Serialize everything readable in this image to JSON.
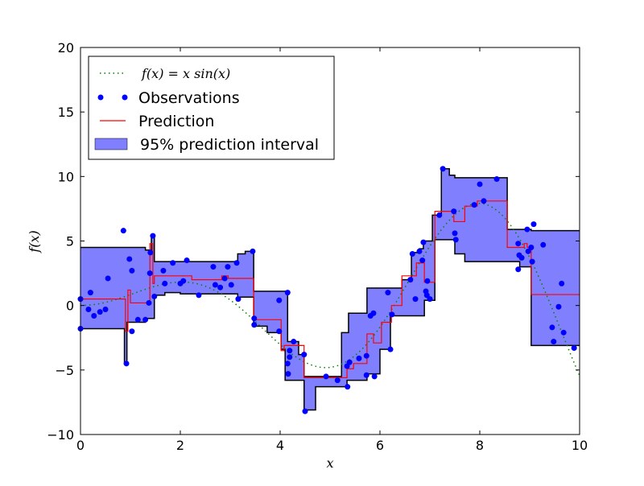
{
  "chart_data": {
    "type": "line",
    "title": "",
    "xlabel": "x",
    "ylabel": "f(x)",
    "xlim": [
      0,
      10
    ],
    "ylim": [
      -10,
      20
    ],
    "xticks": [
      "0",
      "2",
      "4",
      "6",
      "8",
      "10"
    ],
    "yticks": [
      "−10",
      "−5",
      "0",
      "5",
      "10",
      "15",
      "20"
    ],
    "grid": false,
    "legend_position": "top-left",
    "legend": [
      {
        "label": "f(x) = x sin(x)",
        "style": "dotted",
        "color": "#008000"
      },
      {
        "label": "Observations",
        "style": "markers",
        "color": "#0000ff"
      },
      {
        "label": "Prediction",
        "style": "line",
        "color": "#ff0000"
      },
      {
        "label": "95% prediction interval",
        "style": "fill",
        "color": "#8080ff"
      }
    ],
    "function": "x*sin(x)",
    "observations": {
      "x": [
        0,
        0,
        0.2,
        0.16,
        0.27,
        0.39,
        0.5,
        0.55,
        0.86,
        0.92,
        0.98,
        1.03,
        1.03,
        1.15,
        1.3,
        1.37,
        1.39,
        1.4,
        1.45,
        1.48,
        1.66,
        1.69,
        1.85,
        2.0,
        2.06,
        2.13,
        2.37,
        2.66,
        2.7,
        2.8,
        2.89,
        2.95,
        3.02,
        3.13,
        3.16,
        3.45,
        3.48,
        3.48,
        3.98,
        3.98,
        4.15,
        4.15,
        4.16,
        4.19,
        4.19,
        4.27,
        4.48,
        4.5,
        4.92,
        5.15,
        5.34,
        5.35,
        5.39,
        5.58,
        5.73,
        5.73,
        5.81,
        5.89,
        5.87,
        6.21,
        6.24,
        6.16,
        6.61,
        6.65,
        6.71,
        6.79,
        6.85,
        6.87,
        6.92,
        6.94,
        6.95,
        7.0,
        7.19,
        7.26,
        7.48,
        7.5,
        7.52,
        7.89,
        8.0,
        8.08,
        8.34,
        8.77,
        8.77,
        8.79,
        8.84,
        8.95,
        8.97,
        9.03,
        9.05,
        9.08,
        9.27,
        9.45,
        9.48,
        9.58,
        9.64,
        9.68,
        9.89
      ],
      "y": [
        0.5,
        -1.8,
        1.0,
        -0.3,
        -0.8,
        -0.5,
        -0.3,
        2.1,
        5.8,
        -4.5,
        3.6,
        2.7,
        -2.0,
        -1.1,
        -1.1,
        0.2,
        2.5,
        4.1,
        5.4,
        0.7,
        2.7,
        1.7,
        3.3,
        1.7,
        1.9,
        3.5,
        0.8,
        3.0,
        1.6,
        1.4,
        2.1,
        3.0,
        1.6,
        3.3,
        0.5,
        4.2,
        -1.0,
        -1.5,
        0.4,
        -2.0,
        1.0,
        -4.5,
        -5.3,
        -3.5,
        -4.0,
        -2.8,
        -3.8,
        -8.2,
        -5.5,
        -5.8,
        -4.7,
        -6.3,
        -4.4,
        -4.1,
        -3.9,
        -5.4,
        -0.8,
        -5.5,
        -0.6,
        -3.4,
        -0.7,
        1.0,
        2.0,
        4.0,
        0.5,
        4.2,
        3.5,
        4.9,
        1.1,
        0.8,
        1.9,
        0.5,
        7.0,
        10.6,
        7.3,
        5.6,
        5.1,
        7.8,
        9.4,
        8.1,
        9.8,
        4.8,
        2.8,
        3.9,
        3.7,
        5.9,
        4.2,
        4.5,
        3.4,
        6.3,
        4.7,
        -1.7,
        -2.8,
        -0.1,
        1.7,
        -2.1,
        -3.3
      ]
    },
    "prediction_steps": [
      [
        0,
        0.5
      ],
      [
        0.9,
        -2.0
      ],
      [
        0.95,
        1.2
      ],
      [
        1.0,
        0.2
      ],
      [
        1.39,
        4.8
      ],
      [
        1.45,
        1.7
      ],
      [
        1.48,
        2.3
      ],
      [
        2.23,
        2.0
      ],
      [
        2.83,
        2.3
      ],
      [
        2.96,
        2.1
      ],
      [
        3.47,
        -1.1
      ],
      [
        4.02,
        -3.5
      ],
      [
        4.08,
        -3.1
      ],
      [
        4.48,
        -5.6
      ],
      [
        5.34,
        -4.9
      ],
      [
        5.47,
        -4.5
      ],
      [
        5.74,
        -2.2
      ],
      [
        5.87,
        -2.9
      ],
      [
        6.03,
        -1.3
      ],
      [
        6.23,
        0.0
      ],
      [
        6.44,
        2.3
      ],
      [
        6.73,
        3.3
      ],
      [
        6.89,
        1.8
      ],
      [
        7.1,
        7.3
      ],
      [
        7.48,
        6.5
      ],
      [
        7.7,
        7.7
      ],
      [
        7.95,
        8.1
      ],
      [
        8.55,
        4.5
      ],
      [
        8.89,
        4.8
      ],
      [
        8.95,
        4.5
      ],
      [
        9.03,
        0.85
      ]
    ],
    "upper_steps": [
      [
        0,
        4.5
      ],
      [
        1.3,
        4.3
      ],
      [
        1.42,
        5.4
      ],
      [
        1.48,
        3.4
      ],
      [
        3.15,
        4.0
      ],
      [
        3.3,
        4.2
      ],
      [
        3.47,
        1.1
      ],
      [
        4.15,
        -2.8
      ],
      [
        4.37,
        -3.8
      ],
      [
        4.48,
        -5.5
      ],
      [
        5.23,
        -2.1
      ],
      [
        5.37,
        -0.6
      ],
      [
        5.74,
        1.35
      ],
      [
        6.44,
        2.0
      ],
      [
        6.63,
        4.1
      ],
      [
        6.79,
        4.4
      ],
      [
        6.87,
        5.0
      ],
      [
        7.05,
        7.0
      ],
      [
        7.23,
        10.6
      ],
      [
        7.39,
        10.1
      ],
      [
        7.5,
        9.9
      ],
      [
        8.55,
        5.9
      ],
      [
        9.03,
        5.8
      ]
    ],
    "lower_steps": [
      [
        0,
        -1.8
      ],
      [
        0.88,
        -4.5
      ],
      [
        0.93,
        -1.3
      ],
      [
        1.3,
        -1.0
      ],
      [
        1.48,
        0.8
      ],
      [
        1.69,
        1.0
      ],
      [
        2.0,
        0.9
      ],
      [
        3.15,
        0.65
      ],
      [
        3.47,
        -1.6
      ],
      [
        3.74,
        -2.1
      ],
      [
        4.02,
        -3.4
      ],
      [
        4.1,
        -5.8
      ],
      [
        4.48,
        -8.1
      ],
      [
        4.71,
        -6.3
      ],
      [
        5.34,
        -5.8
      ],
      [
        5.74,
        -5.3
      ],
      [
        6.0,
        -3.4
      ],
      [
        6.21,
        -0.8
      ],
      [
        6.89,
        0.4
      ],
      [
        7.1,
        5.1
      ],
      [
        7.5,
        4.0
      ],
      [
        7.7,
        3.4
      ],
      [
        8.8,
        3.0
      ],
      [
        9.03,
        -3.1
      ]
    ]
  }
}
